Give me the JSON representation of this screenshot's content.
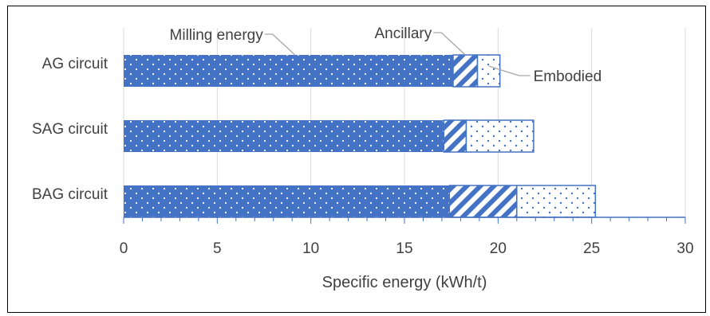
{
  "chart_data": {
    "type": "bar",
    "orientation": "horizontal",
    "stacked": true,
    "categories": [
      "AG circuit",
      "SAG circuit",
      "BAG circuit"
    ],
    "series": [
      {
        "name": "Milling energy",
        "values": [
          17.6,
          17.1,
          17.4
        ]
      },
      {
        "name": "Ancillary",
        "values": [
          1.3,
          1.2,
          3.6
        ]
      },
      {
        "name": "Embodied",
        "values": [
          1.2,
          3.6,
          4.2
        ]
      }
    ],
    "xlabel": "Specific energy (kWh/t)",
    "ylabel": "",
    "xlim": [
      0,
      30
    ],
    "xticks": [
      "0",
      "5",
      "10",
      "15",
      "20",
      "25",
      "30"
    ],
    "grid": true,
    "legend": "none (direct annotations)",
    "colors": {
      "primary": "#4472c4",
      "grid": "#d9d9d9",
      "text": "#404040"
    }
  }
}
